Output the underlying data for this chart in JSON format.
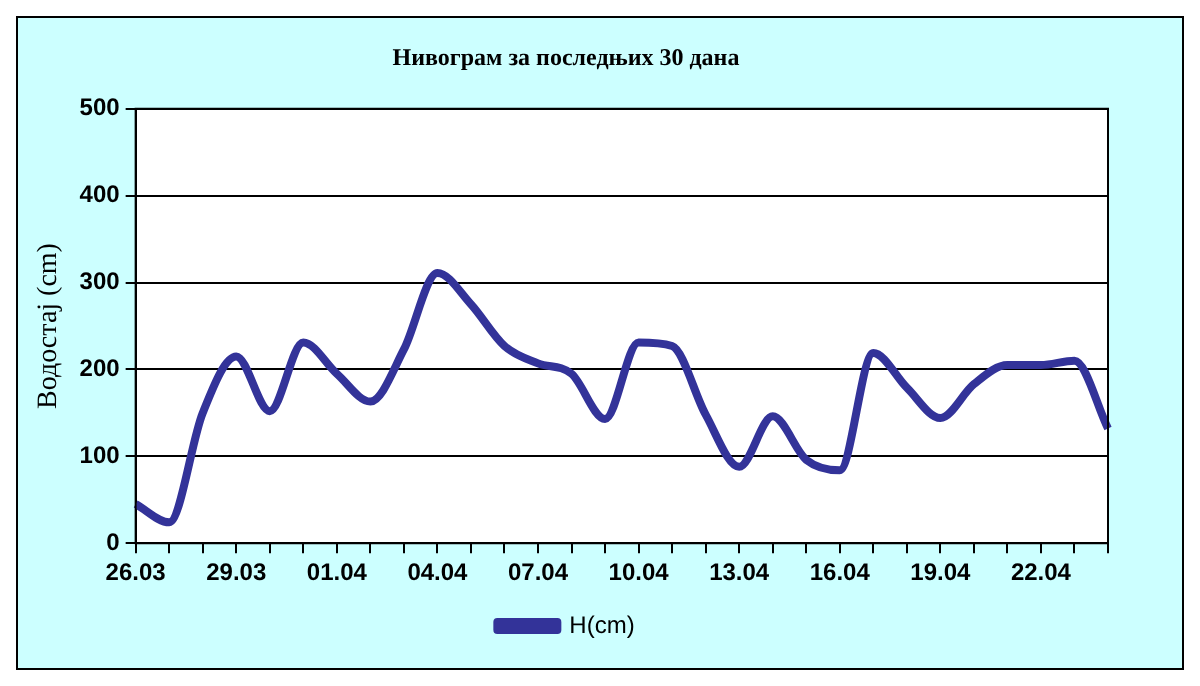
{
  "chart_data": {
    "type": "line",
    "title": "Нивограм за последњих 30 дана",
    "ylabel": "Водостај (cm)",
    "categories": [
      "26.03",
      null,
      null,
      "29.03",
      null,
      null,
      "01.04",
      null,
      null,
      "04.04",
      null,
      null,
      "07.04",
      null,
      null,
      "10.04",
      null,
      null,
      "13.04",
      null,
      null,
      "16.04",
      null,
      null,
      "19.04",
      null,
      null,
      "22.04",
      null,
      null
    ],
    "series": [
      {
        "name": "H(cm)",
        "color": "#333399",
        "values": [
          45,
          24,
          150,
          215,
          152,
          231,
          195,
          163,
          223,
          311,
          275,
          227,
          207,
          195,
          143,
          231,
          227,
          148,
          88,
          146,
          96,
          84,
          219,
          179,
          144,
          183,
          205,
          205,
          210,
          132
        ]
      }
    ],
    "ylim": [
      0,
      500
    ],
    "yticks": [
      0,
      100,
      200,
      300,
      400,
      500
    ],
    "grid": "y",
    "legend": "bottom",
    "marker": "none",
    "line_style": "solid"
  }
}
